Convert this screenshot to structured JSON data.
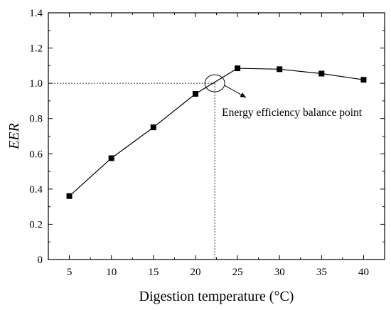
{
  "chart_data": {
    "type": "line",
    "x": [
      5,
      10,
      15,
      20,
      25,
      30,
      35,
      40
    ],
    "series": [
      {
        "values": [
          0.36,
          0.575,
          0.75,
          0.94,
          1.085,
          1.08,
          1.055,
          1.02
        ],
        "marker": "square",
        "color": "#000000"
      }
    ],
    "xlabel": "Digestion temperature (°C)",
    "ylabel": "EER",
    "xlim": [
      2.5,
      42.5
    ],
    "ylim": [
      0,
      1.4
    ],
    "xticks": [
      5,
      10,
      15,
      20,
      25,
      30,
      35,
      40
    ],
    "yticks": [
      0,
      0.2,
      0.4,
      0.6,
      0.8,
      1.0,
      1.2,
      1.4
    ],
    "ytick_labels": [
      "0",
      "0.2",
      "0.4",
      "0.6",
      "0.8",
      "1.0",
      "1.2",
      "1.4"
    ],
    "grid": false,
    "legend": "none",
    "annotations": [
      {
        "text": "Energy efficiency balance point",
        "x": 22.3,
        "y": 1.0
      }
    ]
  }
}
